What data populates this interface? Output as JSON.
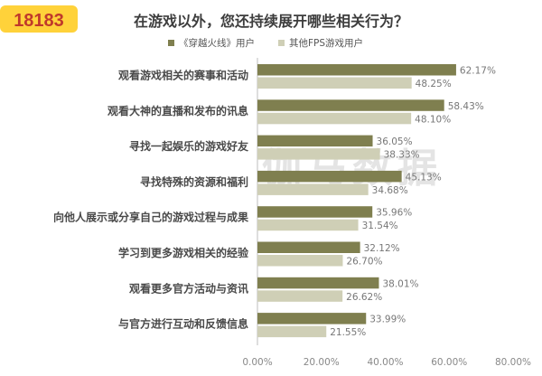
{
  "chart_data": {
    "type": "bar",
    "orientation": "horizontal",
    "title": "在游戏以外，您还持续展开哪些相关行为？",
    "categories": [
      "观看游戏相关的赛事和活动",
      "观看大神的直播和发布的讯息",
      "寻找一起娱乐的游戏好友",
      "寻找特殊的资源和福利",
      "向他人展示或分享自己的游戏过程与成果",
      "学习到更多游戏相关的经验",
      "观看更多官方活动与资讯",
      "与官方进行互动和反馈信息"
    ],
    "series": [
      {
        "name": "《穿越火线》用户",
        "color": "#7f7f4f",
        "values": [
          62.17,
          58.43,
          36.05,
          45.13,
          35.96,
          32.12,
          38.01,
          33.99
        ],
        "labels": [
          "62.17%",
          "58.43%",
          "36.05%",
          "45.13%",
          "35.96%",
          "32.12%",
          "38.01%",
          "33.99%"
        ]
      },
      {
        "name": "其他FPS游戏用户",
        "color": "#cfcfb6",
        "values": [
          48.25,
          48.1,
          38.33,
          34.68,
          31.54,
          26.7,
          26.62,
          21.55
        ],
        "labels": [
          "48.25%",
          "48.10%",
          "38.33%",
          "34.68%",
          "31.54%",
          "26.70%",
          "26.62%",
          "21.55%"
        ]
      }
    ],
    "xlim": [
      0,
      80
    ],
    "xticks": [
      "0.00%",
      "20.00%",
      "40.00%",
      "60.00%",
      "80.00%"
    ],
    "legend_position": "top"
  },
  "watermark": "伽马数据",
  "logo_text": "18183"
}
